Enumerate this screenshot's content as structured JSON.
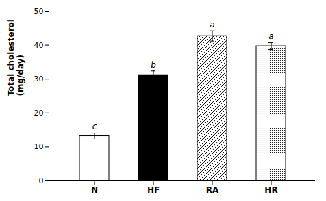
{
  "chart_data": {
    "type": "bar",
    "categories": [
      "N",
      "HF",
      "RA",
      "HR"
    ],
    "values": [
      13.2,
      31.2,
      42.7,
      39.7
    ],
    "errors": [
      0.9,
      1.2,
      1.5,
      1.0
    ],
    "annotations": [
      "c",
      "b",
      "a",
      "a"
    ],
    "colors": [
      "white",
      "black",
      "white",
      "white"
    ],
    "ylabel": "Total cholesterol\n(mg/day)",
    "ylim": [
      0,
      50
    ],
    "yticks": [
      0,
      10,
      20,
      30,
      40,
      50
    ],
    "grid": false
  }
}
